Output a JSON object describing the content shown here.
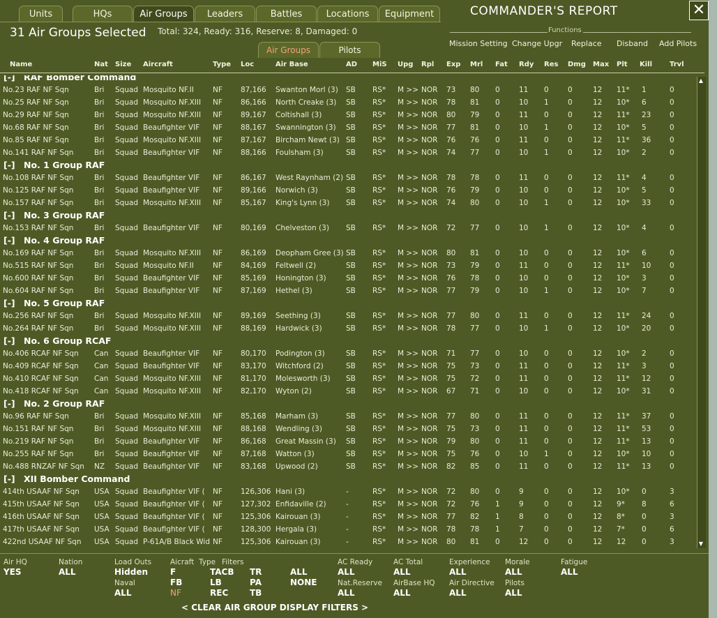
{
  "top_tabs": [
    "Units",
    "HQs",
    "Air Groups",
    "Leaders",
    "Battles",
    "Locations",
    "Equipment"
  ],
  "active_top_tab": 2,
  "report_title": "COMMANDER'S REPORT",
  "close_label": "✕",
  "selected_title": "31 Air Groups Selected",
  "totals": "Total: 324, Ready: 316, Reserve: 8, Damaged: 0",
  "sub_tabs": [
    "Air Groups",
    "Pilots"
  ],
  "active_sub_tab": 0,
  "functions_label": "Functions",
  "functions": [
    "Mission Setting",
    "Change Upgr",
    "Replace",
    "Disband",
    "Add Pilots"
  ],
  "columns": [
    "Name",
    "Nat",
    "Size",
    "Aircraft",
    "Type",
    "Loc",
    "Air Base",
    "AD",
    "MiS",
    "Upg",
    "Rpl",
    "Exp",
    "Mrl",
    "Fat",
    "Rdy",
    "Res",
    "Dmg",
    "Max",
    "Plt",
    "Kill",
    "Trvl"
  ],
  "rows": [
    {
      "g": "[-]",
      "name": "RAF Bomber Command"
    },
    {
      "c": [
        "No.23 RAF NF Sqn",
        "Bri",
        "Squad",
        "Mosquito NF.II",
        "NF",
        "87,166",
        "Swanton Morl (3)",
        "SB",
        "RS*",
        "M >>",
        "NOR",
        "73",
        "80",
        "0",
        "11",
        "0",
        "0",
        "12",
        "11*",
        "1",
        "0"
      ]
    },
    {
      "c": [
        "No.25 RAF NF Sqn",
        "Bri",
        "Squad",
        "Mosquito NF.XIII",
        "NF",
        "86,166",
        "North Creake (3)",
        "SB",
        "RS*",
        "M >>",
        "NOR",
        "78",
        "81",
        "0",
        "10",
        "1",
        "0",
        "12",
        "10*",
        "6",
        "0"
      ]
    },
    {
      "c": [
        "No.29 RAF NF Sqn",
        "Bri",
        "Squad",
        "Mosquito NF.XIII",
        "NF",
        "89,167",
        "Coltishall (3)",
        "SB",
        "RS*",
        "M >>",
        "NOR",
        "80",
        "79",
        "0",
        "11",
        "0",
        "0",
        "12",
        "11*",
        "23",
        "0"
      ]
    },
    {
      "c": [
        "No.68 RAF NF Sqn",
        "Bri",
        "Squad",
        "Beaufighter VIF",
        "NF",
        "88,167",
        "Swannington (3)",
        "SB",
        "RS*",
        "M >>",
        "NOR",
        "77",
        "81",
        "0",
        "10",
        "1",
        "0",
        "12",
        "10*",
        "5",
        "0"
      ]
    },
    {
      "c": [
        "No.85 RAF NF Sqn",
        "Bri",
        "Squad",
        "Mosquito NF.XIII",
        "NF",
        "87,167",
        "Bircham Newt (3)",
        "SB",
        "RS*",
        "M >>",
        "NOR",
        "76",
        "76",
        "0",
        "11",
        "0",
        "0",
        "12",
        "11*",
        "36",
        "0"
      ]
    },
    {
      "c": [
        "No.141 RAF NF Sqn",
        "Bri",
        "Squad",
        "Beaufighter VIF",
        "NF",
        "88,166",
        "Foulsham (3)",
        "SB",
        "RS*",
        "M >>",
        "NOR",
        "74",
        "77",
        "0",
        "10",
        "1",
        "0",
        "12",
        "10*",
        "2",
        "0"
      ]
    },
    {
      "g": "[-]",
      "name": "No. 1 Group RAF"
    },
    {
      "c": [
        "No.108 RAF NF Sqn",
        "Bri",
        "Squad",
        "Beaufighter VIF",
        "NF",
        "86,167",
        "West Raynham (2)",
        "SB",
        "RS*",
        "M >>",
        "NOR",
        "78",
        "78",
        "0",
        "11",
        "0",
        "0",
        "12",
        "11*",
        "4",
        "0"
      ]
    },
    {
      "c": [
        "No.125 RAF NF Sqn",
        "Bri",
        "Squad",
        "Beaufighter VIF",
        "NF",
        "89,166",
        "Norwich (3)",
        "SB",
        "RS*",
        "M >>",
        "NOR",
        "76",
        "79",
        "0",
        "10",
        "0",
        "0",
        "12",
        "10*",
        "5",
        "0"
      ]
    },
    {
      "c": [
        "No.157 RAF NF Sqn",
        "Bri",
        "Squad",
        "Mosquito NF.XIII",
        "NF",
        "85,167",
        "King's Lynn (3)",
        "SB",
        "RS*",
        "M >>",
        "NOR",
        "74",
        "80",
        "0",
        "10",
        "1",
        "0",
        "12",
        "10*",
        "33",
        "0"
      ]
    },
    {
      "g": "[-]",
      "name": "No. 3 Group RAF"
    },
    {
      "c": [
        "No.153 RAF NF Sqn",
        "Bri",
        "Squad",
        "Beaufighter VIF",
        "NF",
        "80,169",
        "Chelveston (3)",
        "SB",
        "RS*",
        "M >>",
        "NOR",
        "72",
        "77",
        "0",
        "10",
        "1",
        "0",
        "12",
        "10*",
        "4",
        "0"
      ]
    },
    {
      "g": "[-]",
      "name": "No. 4 Group RAF"
    },
    {
      "c": [
        "No.169 RAF NF Sqn",
        "Bri",
        "Squad",
        "Mosquito NF.XIII",
        "NF",
        "86,169",
        "Deopham Gree (3)",
        "SB",
        "RS*",
        "M >>",
        "NOR",
        "80",
        "81",
        "0",
        "10",
        "0",
        "0",
        "12",
        "10*",
        "6",
        "0"
      ]
    },
    {
      "c": [
        "No.515 RAF NF Sqn",
        "Bri",
        "Squad",
        "Mosquito NF.II",
        "NF",
        "84,169",
        "Feltwell (2)",
        "SB",
        "RS*",
        "M >>",
        "NOR",
        "73",
        "79",
        "0",
        "11",
        "0",
        "0",
        "12",
        "11*",
        "10",
        "0"
      ]
    },
    {
      "c": [
        "No.600 RAF NF Sqn",
        "Bri",
        "Squad",
        "Beaufighter VIF",
        "NF",
        "85,169",
        "Honington (3)",
        "SB",
        "RS*",
        "M >>",
        "NOR",
        "76",
        "78",
        "0",
        "10",
        "0",
        "0",
        "12",
        "10*",
        "3",
        "0"
      ]
    },
    {
      "c": [
        "No.604 RAF NF Sqn",
        "Bri",
        "Squad",
        "Beaufighter VIF",
        "NF",
        "87,169",
        "Hethel (3)",
        "SB",
        "RS*",
        "M >>",
        "NOR",
        "77",
        "79",
        "0",
        "10",
        "1",
        "0",
        "12",
        "10*",
        "7",
        "0"
      ]
    },
    {
      "g": "[-]",
      "name": "No. 5 Group RAF"
    },
    {
      "c": [
        "No.256 RAF NF Sqn",
        "Bri",
        "Squad",
        "Mosquito NF.XIII",
        "NF",
        "89,169",
        "Seething (3)",
        "SB",
        "RS*",
        "M >>",
        "NOR",
        "77",
        "80",
        "0",
        "11",
        "0",
        "0",
        "12",
        "11*",
        "24",
        "0"
      ]
    },
    {
      "c": [
        "No.264 RAF NF Sqn",
        "Bri",
        "Squad",
        "Mosquito NF.XIII",
        "NF",
        "88,169",
        "Hardwick (3)",
        "SB",
        "RS*",
        "M >>",
        "NOR",
        "78",
        "77",
        "0",
        "10",
        "1",
        "0",
        "12",
        "10*",
        "20",
        "0"
      ]
    },
    {
      "g": "[-]",
      "name": "No. 6 Group RCAF"
    },
    {
      "c": [
        "No.406 RCAF NF Sqn",
        "Can",
        "Squad",
        "Beaufighter VIF",
        "NF",
        "80,170",
        "Podington (3)",
        "SB",
        "RS*",
        "M >>",
        "NOR",
        "71",
        "77",
        "0",
        "10",
        "0",
        "0",
        "12",
        "10*",
        "2",
        "0"
      ]
    },
    {
      "c": [
        "No.409 RCAF NF Sqn",
        "Can",
        "Squad",
        "Beaufighter VIF",
        "NF",
        "83,170",
        "Witchford (2)",
        "SB",
        "RS*",
        "M >>",
        "NOR",
        "75",
        "73",
        "0",
        "11",
        "0",
        "0",
        "12",
        "11*",
        "3",
        "0"
      ]
    },
    {
      "c": [
        "No.410 RCAF NF Sqn",
        "Can",
        "Squad",
        "Mosquito NF.XIII",
        "NF",
        "81,170",
        "Molesworth (3)",
        "SB",
        "RS*",
        "M >>",
        "NOR",
        "75",
        "72",
        "0",
        "11",
        "0",
        "0",
        "12",
        "11*",
        "12",
        "0"
      ]
    },
    {
      "c": [
        "No.418 RCAF NF Sqn",
        "Can",
        "Squad",
        "Mosquito NF.XIII",
        "NF",
        "82,170",
        "Wyton (2)",
        "SB",
        "RS*",
        "M >>",
        "NOR",
        "67",
        "71",
        "0",
        "10",
        "0",
        "0",
        "12",
        "10*",
        "31",
        "0"
      ]
    },
    {
      "g": "[-]",
      "name": "No. 2 Group RAF"
    },
    {
      "c": [
        "No.96 RAF NF Sqn",
        "Bri",
        "Squad",
        "Mosquito NF.XIII",
        "NF",
        "85,168",
        "Marham (3)",
        "SB",
        "RS*",
        "M >>",
        "NOR",
        "77",
        "80",
        "0",
        "11",
        "0",
        "0",
        "12",
        "11*",
        "37",
        "0"
      ]
    },
    {
      "c": [
        "No.151 RAF NF Sqn",
        "Bri",
        "Squad",
        "Mosquito NF.XIII",
        "NF",
        "88,168",
        "Wendling (3)",
        "SB",
        "RS*",
        "M >>",
        "NOR",
        "75",
        "73",
        "0",
        "11",
        "0",
        "0",
        "12",
        "11*",
        "53",
        "0"
      ]
    },
    {
      "c": [
        "No.219 RAF NF Sqn",
        "Bri",
        "Squad",
        "Beaufighter VIF",
        "NF",
        "86,168",
        "Great Massin (3)",
        "SB",
        "RS*",
        "M >>",
        "NOR",
        "79",
        "80",
        "0",
        "11",
        "0",
        "0",
        "12",
        "11*",
        "13",
        "0"
      ]
    },
    {
      "c": [
        "No.255 RAF NF Sqn",
        "Bri",
        "Squad",
        "Beaufighter VIF",
        "NF",
        "87,168",
        "Watton (3)",
        "SB",
        "RS*",
        "M >>",
        "NOR",
        "75",
        "76",
        "0",
        "10",
        "1",
        "0",
        "12",
        "10*",
        "10",
        "0"
      ]
    },
    {
      "c": [
        "No.488 RNZAF NF Sqn",
        "NZ",
        "Squad",
        "Beaufighter VIF",
        "NF",
        "83,168",
        "Upwood (2)",
        "SB",
        "RS*",
        "M >>",
        "NOR",
        "82",
        "85",
        "0",
        "11",
        "0",
        "0",
        "12",
        "11*",
        "13",
        "0"
      ]
    },
    {
      "g": "[-]",
      "name": "XII Bomber Command"
    },
    {
      "c": [
        "414th USAAF NF Sqn",
        "USA",
        "Squad",
        "Beaufighter VIF (",
        "NF",
        "126,306",
        "Hani (3)",
        "-",
        "RS*",
        "M >>",
        "NOR",
        "72",
        "80",
        "0",
        "9",
        "0",
        "0",
        "12",
        "10*",
        "0",
        "3"
      ]
    },
    {
      "c": [
        "415th USAAF NF Sqn",
        "USA",
        "Squad",
        "Beaufighter VIF (",
        "NF",
        "127,302",
        "Enfidaville (2)",
        "-",
        "RS*",
        "M >>",
        "NOR",
        "72",
        "76",
        "1",
        "9",
        "0",
        "0",
        "12",
        "9*",
        "8",
        "6"
      ]
    },
    {
      "c": [
        "416th USAAF NF Sqn",
        "USA",
        "Squad",
        "Beaufighter VIF (",
        "NF",
        "125,306",
        "Kairouan (3)",
        "-",
        "RS*",
        "M >>",
        "NOR",
        "77",
        "82",
        "1",
        "8",
        "0",
        "0",
        "12",
        "8*",
        "0",
        "3"
      ]
    },
    {
      "c": [
        "417th USAAF NF Sqn",
        "USA",
        "Squad",
        "Beaufighter VIF (",
        "NF",
        "128,300",
        "Hergala (3)",
        "-",
        "RS*",
        "M >>",
        "NOR",
        "78",
        "78",
        "1",
        "7",
        "0",
        "0",
        "12",
        "7*",
        "0",
        "6"
      ]
    },
    {
      "c": [
        "422nd USAAF NF Sqn",
        "USA",
        "Squad",
        "P-61A/B Black Wid",
        "NF",
        "125,306",
        "Kairouan (3)",
        "-",
        "RS*",
        "M >>",
        "NOR",
        "80",
        "81",
        "0",
        "12",
        "0",
        "0",
        "12",
        "12",
        "0",
        "3"
      ]
    }
  ],
  "filters": {
    "air_hq_label": "Air HQ",
    "air_hq_value": "YES",
    "nation_label": "Nation",
    "nation_value": "ALL",
    "load_outs_label": "Load Outs",
    "load_outs_value": "Hidden",
    "naval_label": "Naval",
    "naval_value": "ALL",
    "aircraft_label": "Aicraft",
    "type_label": "Type",
    "filters_label": "Filters",
    "type_values": [
      [
        "F",
        "TACB",
        "TR",
        "ALL"
      ],
      [
        "FB",
        "LB",
        "PA",
        "NONE"
      ],
      [
        "NF",
        "REC",
        "TB",
        ""
      ]
    ],
    "highlighted_type": "NF",
    "ac_ready_label": "AC Ready",
    "ac_ready_value": "ALL",
    "ac_total_label": "AC Total",
    "ac_total_value": "ALL",
    "nat_reserve_label": "Nat.Reserve",
    "nat_reserve_value": "ALL",
    "airbase_hq_label": "AirBase HQ",
    "airbase_hq_value": "ALL",
    "experience_label": "Experience",
    "experience_value": "ALL",
    "air_directive_label": "Air Directive",
    "air_directive_value": "ALL",
    "morale_label": "Morale",
    "morale_value": "ALL",
    "pilots_label": "Pilots",
    "pilots_value": "ALL",
    "fatigue_label": "Fatigue",
    "fatigue_value": "ALL",
    "clear_label": "< CLEAR AIR GROUP DISPLAY FILTERS >"
  },
  "colors": {
    "background": "#4e5a25",
    "highlight": "#f5a07f",
    "text": "#e8ecd8"
  },
  "icons": {
    "close": "close-icon",
    "scroll_up": "scroll-up-icon",
    "scroll_down": "scroll-down-icon"
  }
}
